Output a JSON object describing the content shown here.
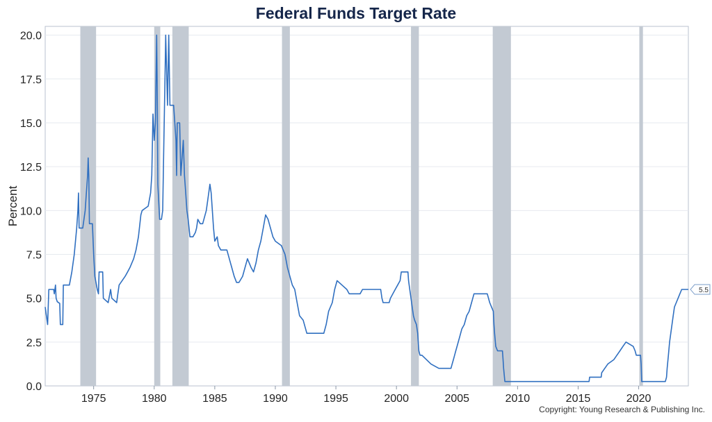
{
  "chart_data": {
    "type": "line",
    "title": "Federal Funds Target Rate",
    "ylabel": "Percent",
    "xlabel": "",
    "xlim": [
      1971.0,
      2024.1
    ],
    "ylim": [
      0,
      20.5
    ],
    "y_ticks": [
      "0.0",
      "2.5",
      "5.0",
      "7.5",
      "10.0",
      "12.5",
      "15.0",
      "17.5",
      "20.0"
    ],
    "x_ticks": [
      "1975",
      "1980",
      "1985",
      "1990",
      "1995",
      "2000",
      "2005",
      "2010",
      "2015",
      "2020"
    ],
    "grid": true,
    "last_value_label": "5.5",
    "recessions": [
      [
        1973.9,
        1975.2
      ],
      [
        1980.0,
        1980.5
      ],
      [
        1981.5,
        1982.85
      ],
      [
        1990.55,
        1991.2
      ],
      [
        2001.2,
        2001.85
      ],
      [
        2007.95,
        2009.45
      ],
      [
        2020.05,
        2020.35
      ]
    ],
    "series": [
      {
        "name": "",
        "color": "#2f6fc0",
        "points": [
          [
            1971.0,
            4.5
          ],
          [
            1971.1,
            4.0
          ],
          [
            1971.2,
            3.5
          ],
          [
            1971.3,
            5.5
          ],
          [
            1971.7,
            5.5
          ],
          [
            1971.75,
            5.25
          ],
          [
            1971.85,
            5.75
          ],
          [
            1971.9,
            5.0
          ],
          [
            1972.0,
            4.8
          ],
          [
            1972.2,
            4.7
          ],
          [
            1972.25,
            3.5
          ],
          [
            1972.45,
            3.5
          ],
          [
            1972.5,
            5.75
          ],
          [
            1973.0,
            5.75
          ],
          [
            1973.2,
            6.5
          ],
          [
            1973.4,
            7.5
          ],
          [
            1973.6,
            9.0
          ],
          [
            1973.7,
            10.0
          ],
          [
            1973.75,
            11.0
          ],
          [
            1973.8,
            9.0
          ],
          [
            1974.0,
            9.0
          ],
          [
            1974.1,
            9.0
          ],
          [
            1974.3,
            10.0
          ],
          [
            1974.4,
            11.0
          ],
          [
            1974.5,
            12.0
          ],
          [
            1974.55,
            13.0
          ],
          [
            1974.6,
            12.0
          ],
          [
            1974.65,
            9.25
          ],
          [
            1974.9,
            9.25
          ],
          [
            1975.0,
            7.5
          ],
          [
            1975.1,
            6.25
          ],
          [
            1975.3,
            5.5
          ],
          [
            1975.4,
            5.25
          ],
          [
            1975.45,
            6.5
          ],
          [
            1975.75,
            6.5
          ],
          [
            1975.8,
            5.0
          ],
          [
            1976.2,
            4.75
          ],
          [
            1976.4,
            5.5
          ],
          [
            1976.5,
            5.0
          ],
          [
            1976.9,
            4.75
          ],
          [
            1977.0,
            5.25
          ],
          [
            1977.1,
            5.75
          ],
          [
            1977.6,
            6.25
          ],
          [
            1977.8,
            6.5
          ],
          [
            1978.0,
            6.75
          ],
          [
            1978.3,
            7.25
          ],
          [
            1978.5,
            7.75
          ],
          [
            1978.7,
            8.5
          ],
          [
            1978.9,
            9.75
          ],
          [
            1979.0,
            10.0
          ],
          [
            1979.5,
            10.25
          ],
          [
            1979.7,
            11.0
          ],
          [
            1979.8,
            12.0
          ],
          [
            1979.9,
            15.5
          ],
          [
            1980.0,
            14.0
          ],
          [
            1980.1,
            15.0
          ],
          [
            1980.2,
            20.0
          ],
          [
            1980.25,
            17.0
          ],
          [
            1980.3,
            11.5
          ],
          [
            1980.45,
            9.5
          ],
          [
            1980.6,
            9.5
          ],
          [
            1980.7,
            10.0
          ],
          [
            1980.8,
            14.0
          ],
          [
            1980.9,
            18.0
          ],
          [
            1980.95,
            20.0
          ],
          [
            1981.1,
            16.0
          ],
          [
            1981.2,
            20.0
          ],
          [
            1981.3,
            16.0
          ],
          [
            1981.6,
            16.0
          ],
          [
            1981.7,
            15.0
          ],
          [
            1981.8,
            14.0
          ],
          [
            1981.85,
            12.0
          ],
          [
            1981.9,
            15.0
          ],
          [
            1982.1,
            15.0
          ],
          [
            1982.2,
            12.0
          ],
          [
            1982.4,
            14.0
          ],
          [
            1982.5,
            12.0
          ],
          [
            1982.6,
            11.0
          ],
          [
            1982.7,
            10.0
          ],
          [
            1982.8,
            9.5
          ],
          [
            1982.95,
            8.5
          ],
          [
            1983.2,
            8.5
          ],
          [
            1983.4,
            8.75
          ],
          [
            1983.5,
            9.0
          ],
          [
            1983.6,
            9.5
          ],
          [
            1983.8,
            9.25
          ],
          [
            1984.0,
            9.25
          ],
          [
            1984.3,
            10.0
          ],
          [
            1984.5,
            11.0
          ],
          [
            1984.6,
            11.5
          ],
          [
            1984.7,
            11.0
          ],
          [
            1984.8,
            10.0
          ],
          [
            1984.9,
            9.0
          ],
          [
            1985.0,
            8.25
          ],
          [
            1985.2,
            8.5
          ],
          [
            1985.3,
            8.0
          ],
          [
            1985.5,
            7.75
          ],
          [
            1985.8,
            7.75
          ],
          [
            1986.0,
            7.75
          ],
          [
            1986.2,
            7.25
          ],
          [
            1986.4,
            6.75
          ],
          [
            1986.6,
            6.25
          ],
          [
            1986.8,
            5.9
          ],
          [
            1987.0,
            5.9
          ],
          [
            1987.3,
            6.25
          ],
          [
            1987.5,
            6.75
          ],
          [
            1987.7,
            7.25
          ],
          [
            1987.85,
            7.0
          ],
          [
            1988.0,
            6.75
          ],
          [
            1988.2,
            6.5
          ],
          [
            1988.4,
            7.0
          ],
          [
            1988.6,
            7.75
          ],
          [
            1988.8,
            8.25
          ],
          [
            1989.0,
            9.0
          ],
          [
            1989.2,
            9.75
          ],
          [
            1989.4,
            9.5
          ],
          [
            1989.6,
            9.0
          ],
          [
            1989.8,
            8.5
          ],
          [
            1990.0,
            8.25
          ],
          [
            1990.5,
            8.0
          ],
          [
            1990.8,
            7.5
          ],
          [
            1991.0,
            6.75
          ],
          [
            1991.2,
            6.25
          ],
          [
            1991.4,
            5.75
          ],
          [
            1991.6,
            5.5
          ],
          [
            1991.8,
            4.75
          ],
          [
            1992.0,
            4.0
          ],
          [
            1992.3,
            3.75
          ],
          [
            1992.6,
            3.0
          ],
          [
            1993.0,
            3.0
          ],
          [
            1994.0,
            3.0
          ],
          [
            1994.2,
            3.5
          ],
          [
            1994.4,
            4.25
          ],
          [
            1994.7,
            4.75
          ],
          [
            1994.9,
            5.5
          ],
          [
            1995.1,
            6.0
          ],
          [
            1995.5,
            5.75
          ],
          [
            1995.9,
            5.5
          ],
          [
            1996.1,
            5.25
          ],
          [
            1997.0,
            5.25
          ],
          [
            1997.2,
            5.5
          ],
          [
            1998.7,
            5.5
          ],
          [
            1998.8,
            5.0
          ],
          [
            1998.9,
            4.75
          ],
          [
            1999.4,
            4.75
          ],
          [
            1999.5,
            5.0
          ],
          [
            1999.7,
            5.25
          ],
          [
            1999.9,
            5.5
          ],
          [
            2000.1,
            5.75
          ],
          [
            2000.3,
            6.0
          ],
          [
            2000.4,
            6.5
          ],
          [
            2000.95,
            6.5
          ],
          [
            2001.0,
            6.0
          ],
          [
            2001.1,
            5.5
          ],
          [
            2001.2,
            5.0
          ],
          [
            2001.3,
            4.5
          ],
          [
            2001.4,
            4.0
          ],
          [
            2001.5,
            3.75
          ],
          [
            2001.65,
            3.5
          ],
          [
            2001.75,
            3.0
          ],
          [
            2001.8,
            2.5
          ],
          [
            2001.85,
            2.0
          ],
          [
            2001.95,
            1.75
          ],
          [
            2002.1,
            1.75
          ],
          [
            2002.85,
            1.25
          ],
          [
            2003.5,
            1.0
          ],
          [
            2004.5,
            1.0
          ],
          [
            2004.6,
            1.25
          ],
          [
            2004.7,
            1.5
          ],
          [
            2004.8,
            1.75
          ],
          [
            2004.9,
            2.0
          ],
          [
            2005.0,
            2.25
          ],
          [
            2005.2,
            2.75
          ],
          [
            2005.4,
            3.25
          ],
          [
            2005.6,
            3.5
          ],
          [
            2005.8,
            4.0
          ],
          [
            2006.0,
            4.25
          ],
          [
            2006.2,
            4.75
          ],
          [
            2006.4,
            5.25
          ],
          [
            2007.5,
            5.25
          ],
          [
            2007.7,
            4.75
          ],
          [
            2007.85,
            4.5
          ],
          [
            2008.0,
            4.25
          ],
          [
            2008.05,
            3.5
          ],
          [
            2008.1,
            3.0
          ],
          [
            2008.2,
            2.25
          ],
          [
            2008.35,
            2.0
          ],
          [
            2008.75,
            2.0
          ],
          [
            2008.8,
            1.5
          ],
          [
            2008.85,
            1.0
          ],
          [
            2008.95,
            0.25
          ],
          [
            2015.9,
            0.25
          ],
          [
            2015.95,
            0.5
          ],
          [
            2016.9,
            0.5
          ],
          [
            2016.95,
            0.75
          ],
          [
            2017.2,
            1.0
          ],
          [
            2017.45,
            1.25
          ],
          [
            2017.95,
            1.5
          ],
          [
            2018.2,
            1.75
          ],
          [
            2018.45,
            2.0
          ],
          [
            2018.7,
            2.25
          ],
          [
            2018.95,
            2.5
          ],
          [
            2019.55,
            2.25
          ],
          [
            2019.7,
            2.0
          ],
          [
            2019.8,
            1.75
          ],
          [
            2020.15,
            1.75
          ],
          [
            2020.2,
            1.25
          ],
          [
            2020.25,
            0.25
          ],
          [
            2022.2,
            0.25
          ],
          [
            2022.3,
            0.5
          ],
          [
            2022.35,
            1.0
          ],
          [
            2022.45,
            1.75
          ],
          [
            2022.55,
            2.5
          ],
          [
            2022.7,
            3.25
          ],
          [
            2022.85,
            4.0
          ],
          [
            2022.95,
            4.5
          ],
          [
            2023.1,
            4.75
          ],
          [
            2023.25,
            5.0
          ],
          [
            2023.4,
            5.25
          ],
          [
            2023.55,
            5.5
          ],
          [
            2024.1,
            5.5
          ]
        ]
      }
    ]
  },
  "footer": {
    "copyright": "Copyright: Young Research & Publishing Inc."
  }
}
